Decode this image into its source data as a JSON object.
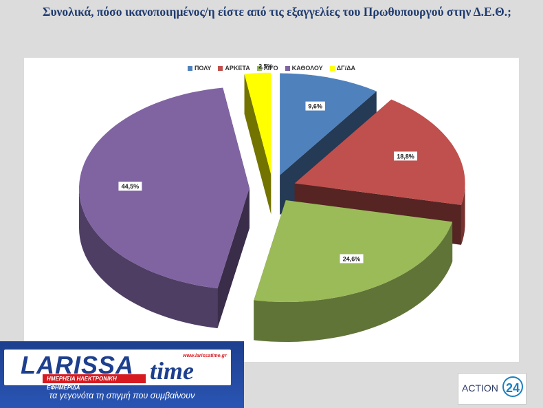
{
  "title": "Συνολικά, πόσο ικανοποιημένος/η είστε από τις εξαγγελίες του Πρωθυπουργού στην Δ.Ε.Θ.;",
  "chart_data": {
    "type": "pie",
    "categories": [
      "ΠΟΛΥ",
      "ΑΡΚΕΤΑ",
      "ΛΙΓΟ",
      "ΚΑΘΟΛΟΥ",
      "ΔΓ/ΔΑ"
    ],
    "values": [
      9.6,
      18.8,
      24.6,
      44.5,
      2.5
    ],
    "data_labels": [
      "9,6%",
      "18,8%",
      "24,6%",
      "44,5%",
      "2,5%"
    ],
    "colors": [
      "#4f81bd",
      "#c0504d",
      "#9bbb59",
      "#8064a2",
      "#ffff00"
    ],
    "legend_position": "top",
    "exploded": true,
    "style": "3d"
  },
  "logos": {
    "larissa": {
      "word1": "LARISSA",
      "word2": "time",
      "url": "www.larissatime.gr",
      "tagline": "ΗΜΕΡΗΣΙΑ ΗΛΕΚΤΡΟΝΙΚΗ ΕΦΗΜΕΡΙΔΑ",
      "slogan": "τα γεγονότα τη στιγμή που συμβαίνουν"
    },
    "action": {
      "text": "ACTION",
      "number": "24"
    }
  }
}
